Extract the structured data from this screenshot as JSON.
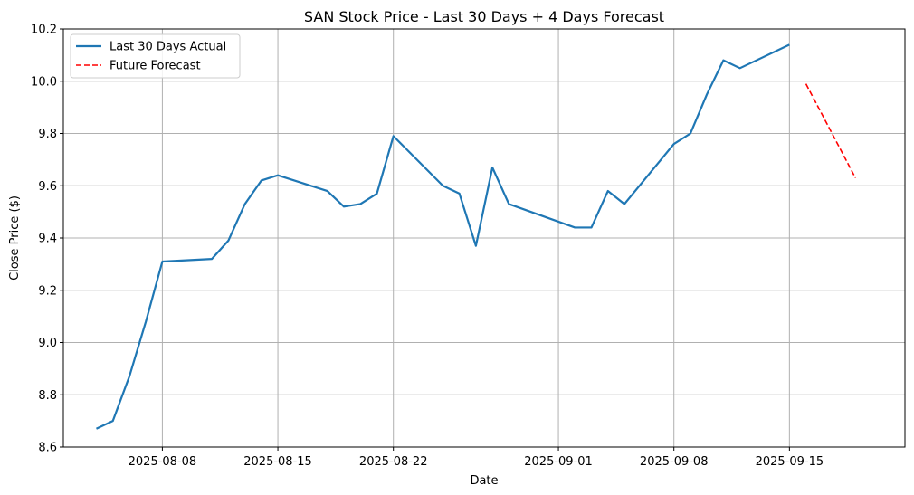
{
  "chart_data": {
    "type": "line",
    "title": "SAN Stock Price - Last 30 Days + 4 Days Forecast",
    "xlabel": "Date",
    "ylabel": "Close Price ($)",
    "xlim": [
      "2025-08-02",
      "2025-09-22"
    ],
    "ylim": [
      8.6,
      10.2
    ],
    "x_ticks": [
      "2025-08-08",
      "2025-08-15",
      "2025-08-22",
      "2025-09-01",
      "2025-09-08",
      "2025-09-15"
    ],
    "y_ticks": [
      8.6,
      8.8,
      9.0,
      9.2,
      9.4,
      9.6,
      9.8,
      10.0,
      10.2
    ],
    "y_tick_labels": [
      "8.6",
      "8.8",
      "9.0",
      "9.2",
      "9.4",
      "9.6",
      "9.8",
      "10.0",
      "10.2"
    ],
    "grid": true,
    "legend_position": "top-left",
    "series": [
      {
        "name": "Last 30 Days Actual",
        "color": "#1f77b4",
        "style": "solid",
        "points": [
          {
            "x": "2025-08-04",
            "y": 8.67
          },
          {
            "x": "2025-08-05",
            "y": 8.7
          },
          {
            "x": "2025-08-06",
            "y": 8.87
          },
          {
            "x": "2025-08-07",
            "y": 9.08
          },
          {
            "x": "2025-08-08",
            "y": 9.31
          },
          {
            "x": "2025-08-11",
            "y": 9.32
          },
          {
            "x": "2025-08-12",
            "y": 9.39
          },
          {
            "x": "2025-08-13",
            "y": 9.53
          },
          {
            "x": "2025-08-14",
            "y": 9.62
          },
          {
            "x": "2025-08-15",
            "y": 9.64
          },
          {
            "x": "2025-08-18",
            "y": 9.58
          },
          {
            "x": "2025-08-19",
            "y": 9.52
          },
          {
            "x": "2025-08-20",
            "y": 9.53
          },
          {
            "x": "2025-08-21",
            "y": 9.57
          },
          {
            "x": "2025-08-22",
            "y": 9.79
          },
          {
            "x": "2025-08-25",
            "y": 9.6
          },
          {
            "x": "2025-08-26",
            "y": 9.57
          },
          {
            "x": "2025-08-27",
            "y": 9.37
          },
          {
            "x": "2025-08-28",
            "y": 9.67
          },
          {
            "x": "2025-08-29",
            "y": 9.53
          },
          {
            "x": "2025-09-02",
            "y": 9.44
          },
          {
            "x": "2025-09-03",
            "y": 9.44
          },
          {
            "x": "2025-09-04",
            "y": 9.58
          },
          {
            "x": "2025-09-05",
            "y": 9.53
          },
          {
            "x": "2025-09-08",
            "y": 9.76
          },
          {
            "x": "2025-09-09",
            "y": 9.8
          },
          {
            "x": "2025-09-10",
            "y": 9.95
          },
          {
            "x": "2025-09-11",
            "y": 10.08
          },
          {
            "x": "2025-09-12",
            "y": 10.05
          },
          {
            "x": "2025-09-15",
            "y": 10.14
          }
        ]
      },
      {
        "name": "Future Forecast",
        "color": "#ff0000",
        "style": "dashed",
        "points": [
          {
            "x": "2025-09-16",
            "y": 9.99
          },
          {
            "x": "2025-09-17",
            "y": 9.87
          },
          {
            "x": "2025-09-18",
            "y": 9.75
          },
          {
            "x": "2025-09-19",
            "y": 9.63
          }
        ]
      }
    ]
  }
}
